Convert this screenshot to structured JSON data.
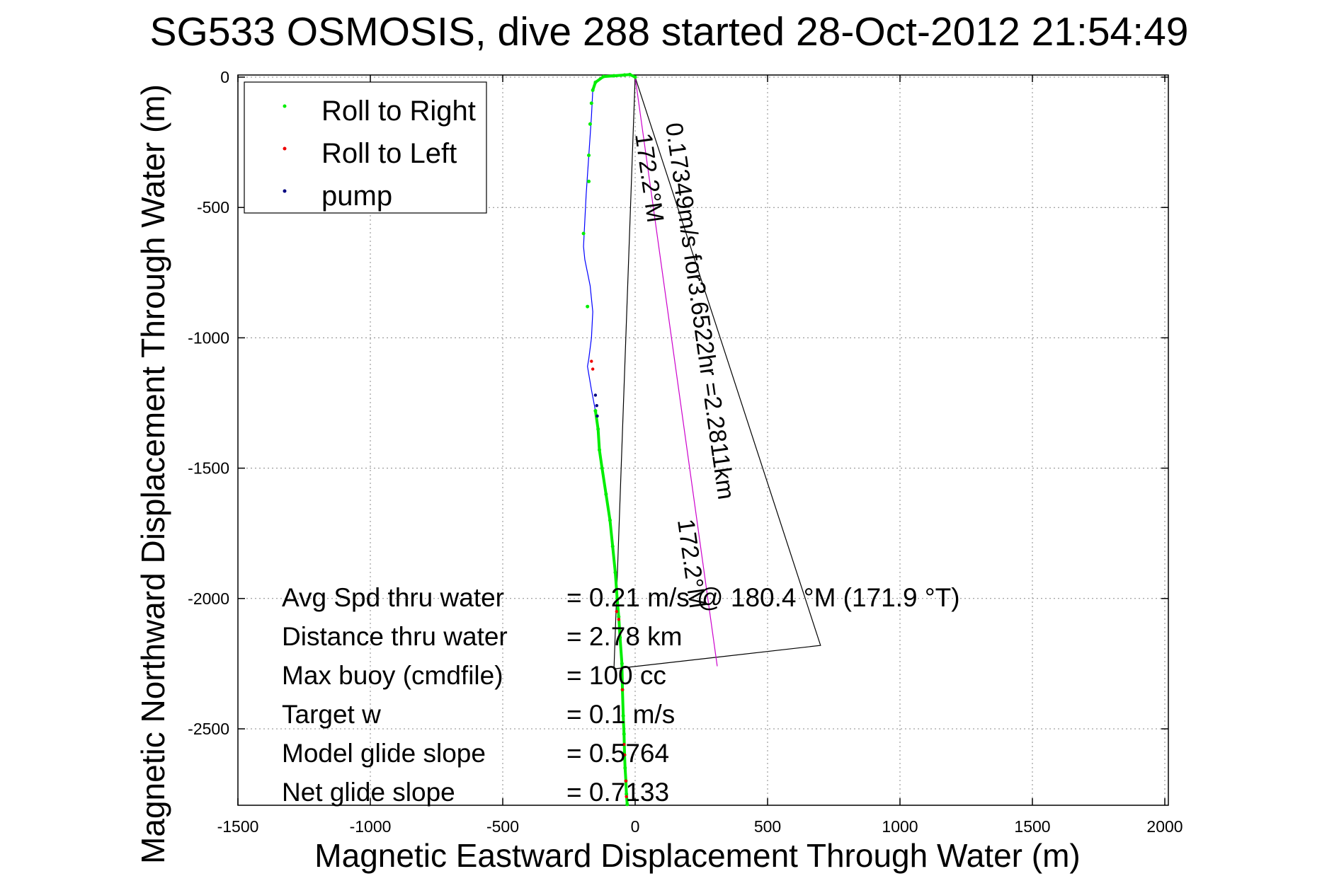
{
  "chart_data": {
    "type": "line",
    "title": "SG533 OSMOSIS, dive 288 started 28-Oct-2012 21:54:49",
    "xlabel": "Magnetic Eastward Displacement Through Water (m)",
    "ylabel": "Magnetic Northward Displacement Through Water (m)",
    "xlim": [
      -1500,
      2000
    ],
    "ylim": [
      -2800,
      0
    ],
    "xticks": [
      "-1500",
      "-1000",
      "-500",
      "0",
      "500",
      "1000",
      "1500",
      "2000"
    ],
    "yticks": [
      "0",
      "-500",
      "-1000",
      "-1500",
      "-2000",
      "-2500"
    ],
    "grid": true,
    "legend_placement": "top-left",
    "legend": [
      {
        "label": "Roll to Right",
        "color": "#00ee00"
      },
      {
        "label": "Roll to Left",
        "color": "#ee0000"
      },
      {
        "label": "pump",
        "color": "#000080"
      }
    ],
    "track": {
      "color": "#0000ff",
      "x": [
        0,
        -20,
        -40,
        -80,
        -120,
        -150,
        -160,
        -165,
        -175,
        -185,
        -190,
        -195,
        -190,
        -180,
        -170,
        -160,
        -165,
        -175,
        -180,
        -175,
        -165,
        -150,
        -140,
        -135,
        -125,
        -110,
        -95,
        -85,
        -75,
        -68,
        -62,
        -57,
        -50,
        -48,
        -45,
        -42,
        -40,
        -38,
        -35,
        -33,
        -30
      ],
      "y": [
        0,
        10,
        8,
        5,
        2,
        -20,
        -50,
        -150,
        -300,
        -450,
        -550,
        -650,
        -700,
        -750,
        -800,
        -900,
        -1000,
        -1080,
        -1110,
        -1140,
        -1200,
        -1280,
        -1350,
        -1430,
        -1500,
        -1600,
        -1700,
        -1800,
        -1900,
        -2000,
        -2070,
        -2150,
        -2250,
        -2350,
        -2450,
        -2520,
        -2600,
        -2650,
        -2700,
        -2750,
        -2790
      ]
    },
    "green_x": [
      0,
      -20,
      -40,
      -80,
      -120,
      -150,
      -160,
      -165,
      -150,
      -140,
      -135,
      -125,
      -110,
      -95,
      -85,
      -75,
      -68,
      -62,
      -57,
      -50,
      -48,
      -45,
      -42,
      -40,
      -38,
      -35,
      -33,
      -30,
      -175,
      -170,
      -175,
      -195,
      -180
    ],
    "green_y": [
      0,
      10,
      8,
      5,
      2,
      -20,
      -50,
      -100,
      -1280,
      -1350,
      -1430,
      -1500,
      -1600,
      -1700,
      -1800,
      -1900,
      -2000,
      -2070,
      -2150,
      -2250,
      -2350,
      -2450,
      -2520,
      -2600,
      -2650,
      -2700,
      -2750,
      -2790,
      -300,
      -180,
      -400,
      -600,
      -880
    ],
    "red_x": [
      -165,
      -160,
      -70,
      -62,
      -48,
      -42,
      -40,
      -35,
      -33
    ],
    "red_y": [
      -1090,
      -1120,
      -2050,
      -2080,
      -2350,
      -2560,
      -2600,
      -2700,
      -2760
    ],
    "pump_x": [
      -150,
      -145,
      -143
    ],
    "pump_y": [
      -1220,
      -1260,
      -1300
    ],
    "current_line": {
      "color": "#cc00cc",
      "x": [
        0,
        310
      ],
      "y": [
        0,
        -2260
      ]
    },
    "triangle": {
      "color": "#000000",
      "x": [
        0,
        -80,
        700,
        0
      ],
      "y": [
        0,
        -2270,
        -2180,
        0
      ]
    },
    "rotated_labels": [
      {
        "text": "0.17349m/s for3.6522hr =2.2811km",
        "x": 115,
        "y": -180
      },
      {
        "text": "172.2°M",
        "x": 0,
        "y": -220
      },
      {
        "text": "172.2°M",
        "x": 160,
        "y": -1700
      }
    ],
    "annotations": [
      {
        "label": "Avg Spd thru water",
        "value": "=  0.21 m/s @ 180.4 °M (171.9 °T)"
      },
      {
        "label": "Distance thru water",
        "value": "=  2.78 km"
      },
      {
        "label": "Max buoy (cmdfile)",
        "value": "= 100 cc"
      },
      {
        "label": "Target w",
        "value": "= 0.1 m/s"
      },
      {
        "label": "Model glide slope",
        "value": "= 0.5764"
      },
      {
        "label": "Net glide slope",
        "value": "= 0.7133"
      }
    ]
  }
}
